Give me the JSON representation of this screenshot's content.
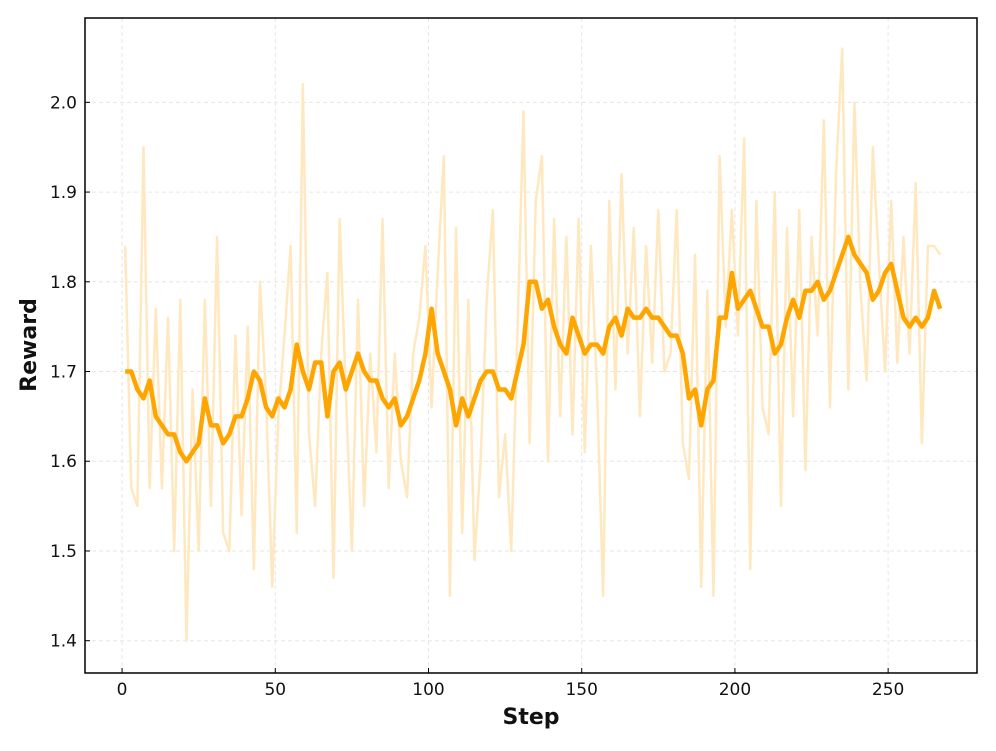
{
  "chart_data": {
    "type": "line",
    "xlabel": "Step",
    "ylabel": "Reward",
    "x": [
      1,
      3,
      5,
      7,
      9,
      11,
      13,
      15,
      17,
      19,
      21,
      23,
      25,
      27,
      29,
      31,
      33,
      35,
      37,
      39,
      41,
      43,
      45,
      47,
      49,
      51,
      53,
      55,
      57,
      59,
      61,
      63,
      65,
      67,
      69,
      71,
      73,
      75,
      77,
      79,
      81,
      83,
      85,
      87,
      89,
      91,
      93,
      95,
      97,
      99,
      101,
      103,
      105,
      107,
      109,
      111,
      113,
      115,
      117,
      119,
      121,
      123,
      125,
      127,
      129,
      131,
      133,
      135,
      137,
      139,
      141,
      143,
      145,
      147,
      149,
      151,
      153,
      155,
      157,
      159,
      161,
      163,
      165,
      167,
      169,
      171,
      173,
      175,
      177,
      179,
      181,
      183,
      185,
      187,
      189,
      191,
      193,
      195,
      197,
      199,
      201,
      203,
      205,
      207,
      209,
      211,
      213,
      215,
      217,
      219,
      221,
      223,
      225,
      227,
      229,
      231,
      233,
      235,
      237,
      239,
      241,
      243,
      245,
      247,
      249,
      251,
      253,
      255,
      257,
      259,
      261,
      263,
      265,
      267
    ],
    "series": [
      {
        "color": "#ffe8bf",
        "width": 2.5,
        "values": [
          1.84,
          1.57,
          1.55,
          1.95,
          1.57,
          1.77,
          1.57,
          1.76,
          1.5,
          1.78,
          1.4,
          1.68,
          1.5,
          1.78,
          1.55,
          1.85,
          1.52,
          1.5,
          1.74,
          1.54,
          1.75,
          1.48,
          1.8,
          1.67,
          1.46,
          1.65,
          1.74,
          1.84,
          1.52,
          2.02,
          1.63,
          1.55,
          1.72,
          1.81,
          1.47,
          1.87,
          1.68,
          1.5,
          1.78,
          1.55,
          1.72,
          1.61,
          1.87,
          1.57,
          1.72,
          1.6,
          1.56,
          1.72,
          1.76,
          1.84,
          1.66,
          1.81,
          1.94,
          1.45,
          1.86,
          1.52,
          1.78,
          1.49,
          1.6,
          1.78,
          1.88,
          1.56,
          1.63,
          1.5,
          1.74,
          1.99,
          1.62,
          1.89,
          1.94,
          1.6,
          1.87,
          1.65,
          1.85,
          1.63,
          1.87,
          1.61,
          1.84,
          1.68,
          1.45,
          1.89,
          1.68,
          1.92,
          1.72,
          1.86,
          1.65,
          1.84,
          1.71,
          1.88,
          1.7,
          1.72,
          1.88,
          1.62,
          1.58,
          1.83,
          1.46,
          1.79,
          1.45,
          1.94,
          1.75,
          1.88,
          1.74,
          1.96,
          1.48,
          1.89,
          1.66,
          1.63,
          1.9,
          1.55,
          1.86,
          1.65,
          1.88,
          1.59,
          1.85,
          1.74,
          1.98,
          1.66,
          1.92,
          2.06,
          1.68,
          2.0,
          1.79,
          1.69,
          1.95,
          1.82,
          1.7,
          1.89,
          1.71,
          1.85,
          1.72,
          1.91,
          1.62,
          1.84,
          1.84,
          1.83
        ]
      },
      {
        "color": "#ffa500",
        "width": 4.5,
        "values": [
          1.7,
          1.7,
          1.68,
          1.67,
          1.69,
          1.65,
          1.64,
          1.63,
          1.63,
          1.61,
          1.6,
          1.61,
          1.62,
          1.67,
          1.64,
          1.64,
          1.62,
          1.63,
          1.65,
          1.65,
          1.67,
          1.7,
          1.69,
          1.66,
          1.65,
          1.67,
          1.66,
          1.68,
          1.73,
          1.7,
          1.68,
          1.71,
          1.71,
          1.65,
          1.7,
          1.71,
          1.68,
          1.7,
          1.72,
          1.7,
          1.69,
          1.69,
          1.67,
          1.66,
          1.67,
          1.64,
          1.65,
          1.67,
          1.69,
          1.72,
          1.77,
          1.72,
          1.7,
          1.68,
          1.64,
          1.67,
          1.65,
          1.67,
          1.69,
          1.7,
          1.7,
          1.68,
          1.68,
          1.67,
          1.7,
          1.73,
          1.8,
          1.8,
          1.77,
          1.78,
          1.75,
          1.73,
          1.72,
          1.76,
          1.74,
          1.72,
          1.73,
          1.73,
          1.72,
          1.75,
          1.76,
          1.74,
          1.77,
          1.76,
          1.76,
          1.77,
          1.76,
          1.76,
          1.75,
          1.74,
          1.74,
          1.72,
          1.67,
          1.68,
          1.64,
          1.68,
          1.69,
          1.76,
          1.76,
          1.81,
          1.77,
          1.78,
          1.79,
          1.77,
          1.75,
          1.75,
          1.72,
          1.73,
          1.76,
          1.78,
          1.76,
          1.79,
          1.79,
          1.8,
          1.78,
          1.79,
          1.81,
          1.83,
          1.85,
          1.83,
          1.82,
          1.81,
          1.78,
          1.79,
          1.81,
          1.82,
          1.79,
          1.76,
          1.75,
          1.76,
          1.75,
          1.76,
          1.79,
          1.77
        ]
      }
    ],
    "xlim": [
      -12.1,
      279.0
    ],
    "ylim": [
      1.364,
      2.094
    ],
    "xticks": [
      0,
      50,
      100,
      150,
      200,
      250
    ],
    "yticks": [
      1.4,
      1.5,
      1.6,
      1.7,
      1.8,
      1.9,
      {
        "value": 2,
        "label": "2.0"
      }
    ],
    "grid": true
  }
}
